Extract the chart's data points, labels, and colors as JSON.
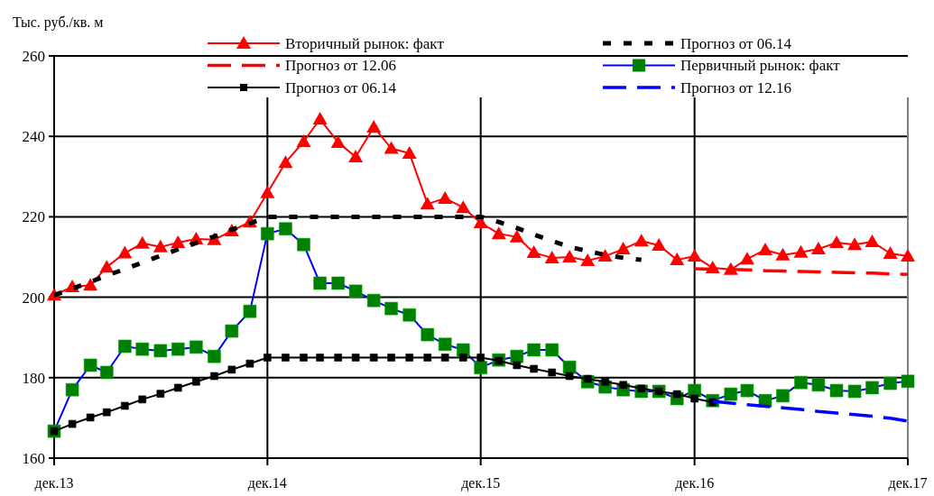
{
  "chart_data": {
    "type": "line",
    "ylabel": "Тыс. руб./кв. м",
    "xlim": [
      "2013-12",
      "2017-12"
    ],
    "ylim": [
      160,
      260
    ],
    "xticks": [
      {
        "value": "2013-12",
        "label": "дек.13"
      },
      {
        "value": "2014-12",
        "label": "дек.14"
      },
      {
        "value": "2015-12",
        "label": "дек.15"
      },
      {
        "value": "2016-12",
        "label": "дек.16"
      },
      {
        "value": "2017-12",
        "label": "дек.17"
      }
    ],
    "yticks": [
      160,
      180,
      200,
      220,
      240,
      260
    ],
    "grid": true,
    "legend": "top",
    "series": [
      {
        "name": "Вторичный рынок: факт",
        "color": "#ff0000",
        "marker": "triangle",
        "line_style": "solid",
        "x": [
          "2013-12",
          "2014-01",
          "2014-02",
          "2014-03",
          "2014-04",
          "2014-05",
          "2014-06",
          "2014-07",
          "2014-08",
          "2014-09",
          "2014-10",
          "2014-11",
          "2014-12",
          "2015-01",
          "2015-02",
          "2015-03",
          "2015-04",
          "2015-05",
          "2015-06",
          "2015-07",
          "2015-08",
          "2015-09",
          "2015-10",
          "2015-11",
          "2015-12",
          "2016-01",
          "2016-02",
          "2016-03",
          "2016-04",
          "2016-05",
          "2016-06",
          "2016-07",
          "2016-08",
          "2016-09",
          "2016-10",
          "2016-11",
          "2016-12",
          "2017-01",
          "2017-02",
          "2017-03",
          "2017-04",
          "2017-05",
          "2017-06",
          "2017-07",
          "2017-08",
          "2017-09",
          "2017-10",
          "2017-11",
          "2017-12"
        ],
        "values": [
          200.5,
          202.6,
          203,
          207.5,
          211,
          213.4,
          212.5,
          213.6,
          214.5,
          214.3,
          216.5,
          218.7,
          226,
          233.5,
          238.7,
          244.3,
          238.5,
          234.9,
          242.3,
          237,
          235.8,
          223.2,
          224.6,
          222.3,
          218.5,
          215.8,
          215,
          211.1,
          209.8,
          210,
          209.1,
          210.2,
          212,
          214,
          212.9,
          209.3,
          210.2,
          207.3,
          206.9,
          209.5,
          211.8,
          210.5,
          211.2,
          212,
          213.6,
          213.1,
          213.8,
          210.9,
          210.2
        ]
      },
      {
        "name": "Прогноз от 06.14",
        "color": "#000000",
        "marker": "none",
        "line_style": "dotted",
        "x": [
          "2013-12",
          "2014-01",
          "2014-02",
          "2014-03",
          "2014-04",
          "2014-05",
          "2014-06",
          "2014-07",
          "2014-08",
          "2014-09",
          "2014-10",
          "2014-11",
          "2014-12",
          "2015-01",
          "2015-02",
          "2015-03",
          "2015-04",
          "2015-05",
          "2015-06",
          "2015-07",
          "2015-08",
          "2015-09",
          "2015-10",
          "2015-11",
          "2015-12",
          "2016-01",
          "2016-02",
          "2016-03",
          "2016-04",
          "2016-05",
          "2016-06",
          "2016-07",
          "2016-08",
          "2016-09"
        ],
        "values": [
          200.5,
          202.1,
          203.8,
          205.4,
          207,
          208.6,
          210.3,
          211.9,
          213.5,
          215.1,
          216.8,
          218.4,
          220,
          220,
          220,
          220,
          220,
          220,
          220,
          220,
          220,
          220,
          220,
          220,
          220,
          218.7,
          217.2,
          215.6,
          214,
          212.5,
          211.5,
          210.5,
          209.8,
          209.3
        ]
      },
      {
        "name": "Прогноз от 12.06",
        "color": "#ff0000",
        "marker": "none",
        "line_style": "dashed",
        "x": [
          "2016-12",
          "2017-01",
          "2017-02",
          "2017-03",
          "2017-04",
          "2017-05",
          "2017-06",
          "2017-07",
          "2017-08",
          "2017-09",
          "2017-10",
          "2017-11",
          "2017-12"
        ],
        "values": [
          207.1,
          207,
          206.9,
          206.8,
          206.6,
          206.5,
          206.4,
          206.3,
          206.2,
          206.1,
          206,
          205.8,
          205.7
        ]
      },
      {
        "name": "Первичный рынок: факт",
        "color": "#0000ff",
        "marker": "square",
        "line_style": "solid",
        "x": [
          "2013-12",
          "2014-01",
          "2014-02",
          "2014-03",
          "2014-04",
          "2014-05",
          "2014-06",
          "2014-07",
          "2014-08",
          "2014-09",
          "2014-10",
          "2014-11",
          "2014-12",
          "2015-01",
          "2015-02",
          "2015-03",
          "2015-04",
          "2015-05",
          "2015-06",
          "2015-07",
          "2015-08",
          "2015-09",
          "2015-10",
          "2015-11",
          "2015-12",
          "2016-01",
          "2016-02",
          "2016-03",
          "2016-04",
          "2016-05",
          "2016-06",
          "2016-07",
          "2016-08",
          "2016-09",
          "2016-10",
          "2016-11",
          "2016-12",
          "2017-01",
          "2017-02",
          "2017-03",
          "2017-04",
          "2017-05",
          "2017-06",
          "2017-07",
          "2017-08",
          "2017-09",
          "2017-10",
          "2017-11",
          "2017-12"
        ],
        "values": [
          166.7,
          177,
          183.1,
          181.3,
          187.8,
          187.1,
          186.7,
          187.1,
          187.6,
          185.3,
          191.6,
          196.5,
          215.8,
          217,
          213.1,
          203.5,
          203.5,
          201.5,
          199.2,
          197.2,
          195.6,
          190.7,
          188.3,
          186.9,
          182.5,
          184.4,
          185.3,
          186.9,
          186.9,
          182.6,
          179,
          177.7,
          177,
          176.6,
          176.6,
          174.8,
          176.8,
          174.3,
          175.9,
          176.8,
          174.3,
          175.5,
          178.8,
          178.2,
          176.8,
          176.6,
          177.5,
          178.6,
          179.1
        ]
      },
      {
        "name": "Прогноз от 06.14",
        "color": "#000000",
        "marker": "square",
        "line_style": "solid",
        "x": [
          "2013-12",
          "2014-01",
          "2014-02",
          "2014-03",
          "2014-04",
          "2014-05",
          "2014-06",
          "2014-07",
          "2014-08",
          "2014-09",
          "2014-10",
          "2014-11",
          "2014-12",
          "2015-01",
          "2015-02",
          "2015-03",
          "2015-04",
          "2015-05",
          "2015-06",
          "2015-07",
          "2015-08",
          "2015-09",
          "2015-10",
          "2015-11",
          "2015-12",
          "2016-01",
          "2016-02",
          "2016-03",
          "2016-04",
          "2016-05",
          "2016-06",
          "2016-07",
          "2016-08",
          "2016-09",
          "2016-10",
          "2016-11",
          "2016-12",
          "2017-01"
        ],
        "values": [
          166.7,
          168.5,
          170.1,
          171.4,
          173,
          174.6,
          176,
          177.5,
          179,
          180.4,
          182,
          183.5,
          185,
          185,
          185,
          185,
          185,
          185,
          185,
          185,
          185,
          185,
          185,
          185,
          185,
          184.2,
          183.1,
          182.2,
          181.3,
          180.4,
          179.7,
          179,
          178.2,
          177.3,
          176.6,
          175.9,
          174.8,
          173.9
        ]
      },
      {
        "name": "Прогноз от 12.16",
        "color": "#0000ff",
        "marker": "none",
        "line_style": "dashed",
        "x": [
          "2017-01",
          "2017-02",
          "2017-03",
          "2017-04",
          "2017-05",
          "2017-06",
          "2017-07",
          "2017-08",
          "2017-09",
          "2017-10",
          "2017-11",
          "2017-12"
        ],
        "values": [
          174.1,
          173.7,
          173.3,
          172.9,
          172.5,
          172.1,
          171.6,
          171.2,
          170.8,
          170.4,
          169.9,
          169.2
        ]
      }
    ]
  }
}
